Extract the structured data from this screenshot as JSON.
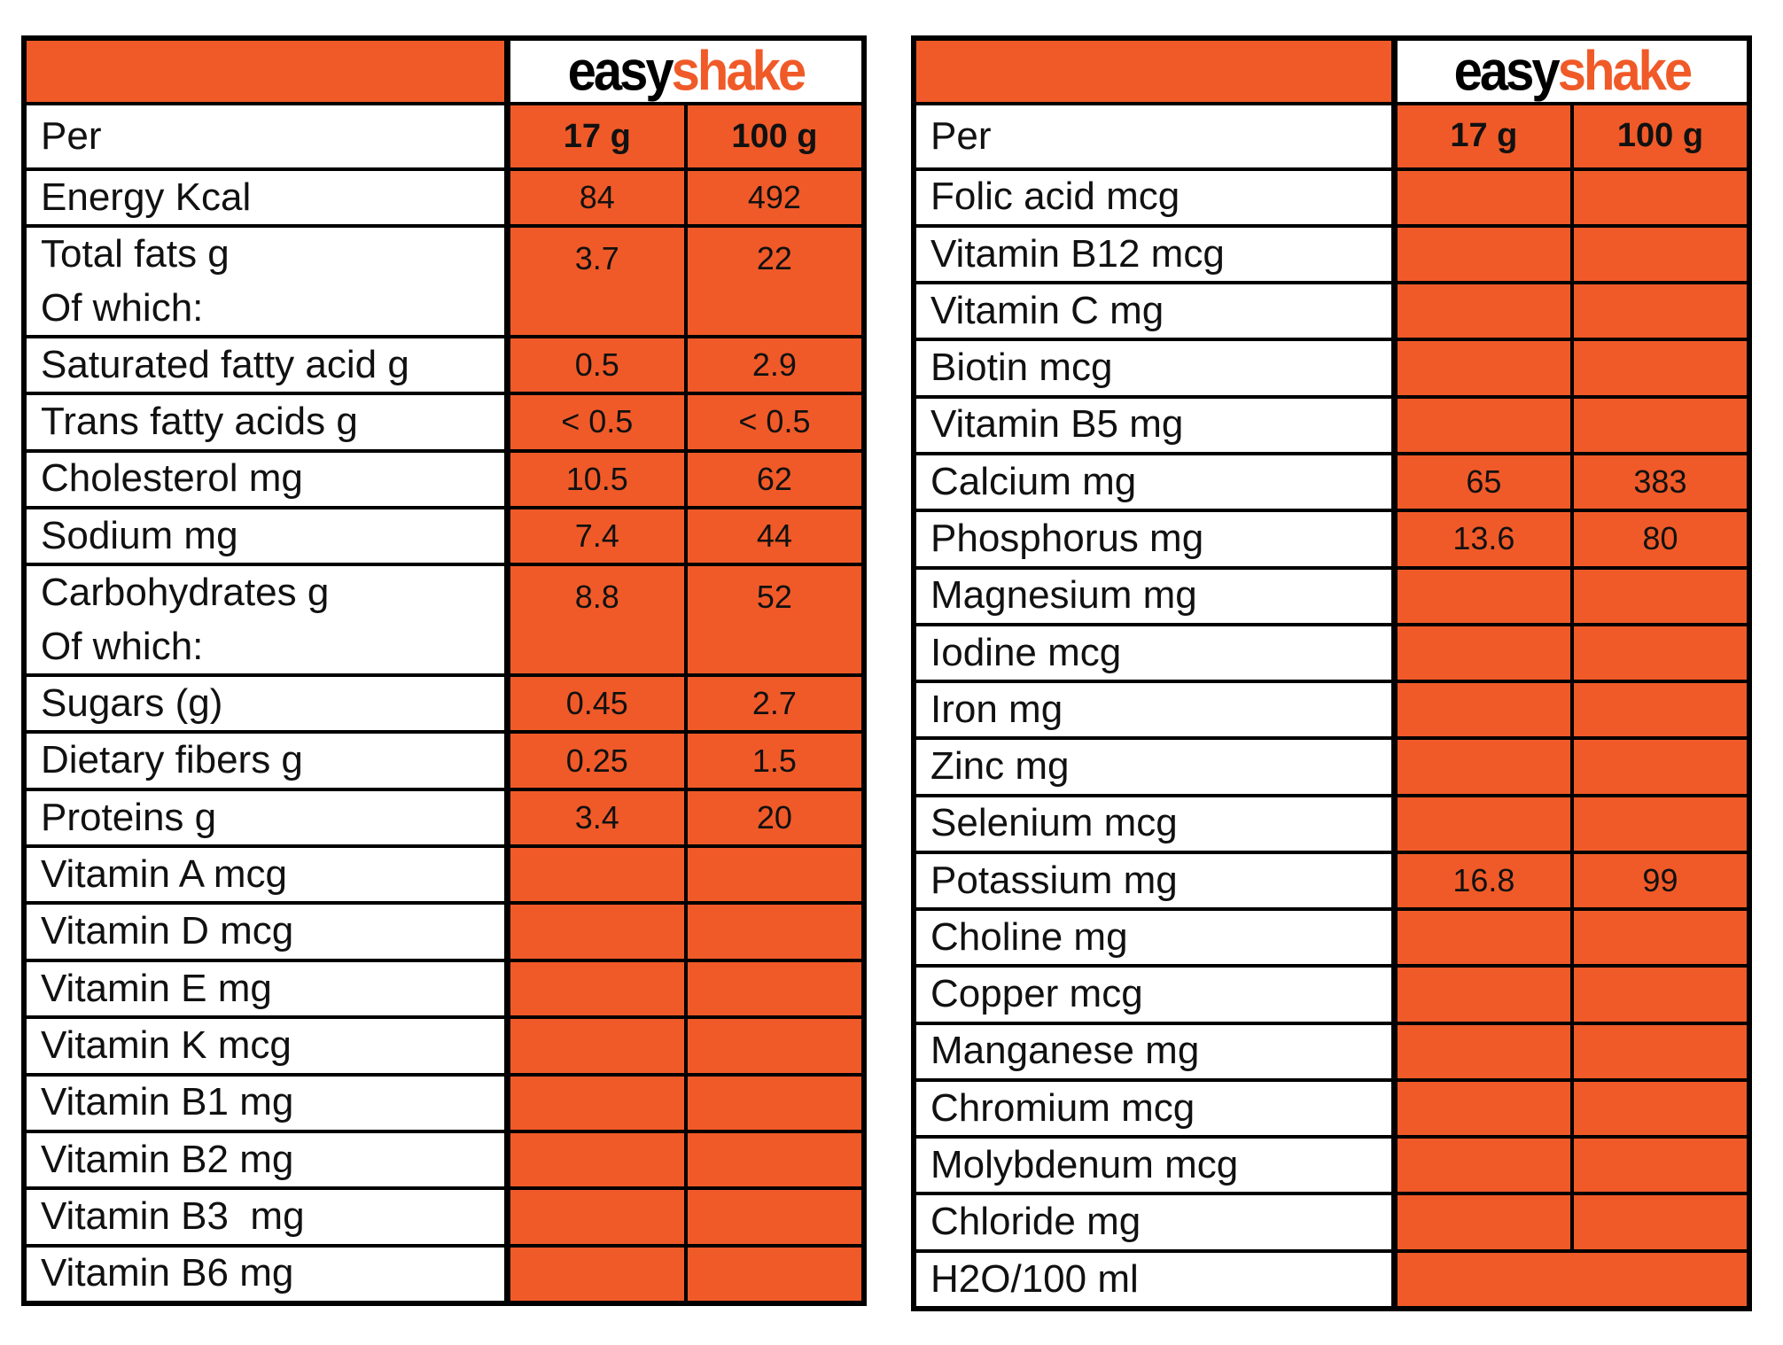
{
  "brand": {
    "name": "easyshake",
    "logo_black": "easy",
    "logo_orange": "shake"
  },
  "colors": {
    "orange": "#F05A28",
    "grid_line": "#000000",
    "text": "#111111"
  },
  "left_table": {
    "per_label": "Per",
    "columns": [
      "17 g",
      "100 g"
    ],
    "rows": [
      {
        "label": "Energy Kcal",
        "v17": "84",
        "v100": "492"
      },
      {
        "label": "Total fats g\nOf which:",
        "v17": "3.7",
        "v100": "22",
        "two_line": true
      },
      {
        "label": "Saturated fatty acid g",
        "v17": "0.5",
        "v100": "2.9"
      },
      {
        "label": "Trans fatty acids g",
        "v17": "< 0.5",
        "v100": "< 0.5"
      },
      {
        "label": "Cholesterol mg",
        "v17": "10.5",
        "v100": "62"
      },
      {
        "label": "Sodium mg",
        "v17": "7.4",
        "v100": "44"
      },
      {
        "label": "Carbohydrates g\nOf which:",
        "v17": "8.8",
        "v100": "52",
        "two_line": true
      },
      {
        "label": "Sugars (g)",
        "v17": "0.45",
        "v100": "2.7"
      },
      {
        "label": "Dietary fibers g",
        "v17": "0.25",
        "v100": "1.5"
      },
      {
        "label": "Proteins g",
        "v17": "3.4",
        "v100": "20"
      },
      {
        "label": "Vitamin A mcg",
        "v17": "",
        "v100": ""
      },
      {
        "label": "Vitamin D mcg",
        "v17": "",
        "v100": ""
      },
      {
        "label": "Vitamin E mg",
        "v17": "",
        "v100": ""
      },
      {
        "label": "Vitamin K mcg",
        "v17": "",
        "v100": ""
      },
      {
        "label": "Vitamin B1 mg",
        "v17": "",
        "v100": ""
      },
      {
        "label": "Vitamin B2 mg",
        "v17": "",
        "v100": ""
      },
      {
        "label": "Vitamin B3  mg",
        "v17": "",
        "v100": ""
      },
      {
        "label": "Vitamin B6 mg",
        "v17": "",
        "v100": ""
      }
    ]
  },
  "right_table": {
    "per_label": "Per",
    "columns": [
      "17 g",
      "100 g"
    ],
    "rows": [
      {
        "label": "Folic acid mcg",
        "v17": "",
        "v100": ""
      },
      {
        "label": "Vitamin B12 mcg",
        "v17": "",
        "v100": ""
      },
      {
        "label": "Vitamin C mg",
        "v17": "",
        "v100": ""
      },
      {
        "label": "Biotin mcg",
        "v17": "",
        "v100": ""
      },
      {
        "label": "Vitamin B5 mg",
        "v17": "",
        "v100": ""
      },
      {
        "label": "Calcium mg",
        "v17": "65",
        "v100": "383"
      },
      {
        "label": "Phosphorus mg",
        "v17": "13.6",
        "v100": "80"
      },
      {
        "label": "Magnesium mg",
        "v17": "",
        "v100": ""
      },
      {
        "label": "Iodine mcg",
        "v17": "",
        "v100": ""
      },
      {
        "label": "Iron mg",
        "v17": "",
        "v100": ""
      },
      {
        "label": "Zinc mg",
        "v17": "",
        "v100": ""
      },
      {
        "label": "Selenium mcg",
        "v17": "",
        "v100": ""
      },
      {
        "label": "Potassium mg",
        "v17": "16.8",
        "v100": "99"
      },
      {
        "label": "Choline mg",
        "v17": "",
        "v100": ""
      },
      {
        "label": "Copper mcg",
        "v17": "",
        "v100": ""
      },
      {
        "label": "Manganese mg",
        "v17": "",
        "v100": ""
      },
      {
        "label": "Chromium mcg",
        "v17": "",
        "v100": ""
      },
      {
        "label": "Molybdenum mcg",
        "v17": "",
        "v100": ""
      },
      {
        "label": "Chloride mg",
        "v17": "",
        "v100": ""
      },
      {
        "label": "H2O/100 ml",
        "merged": true,
        "value": ""
      }
    ]
  }
}
